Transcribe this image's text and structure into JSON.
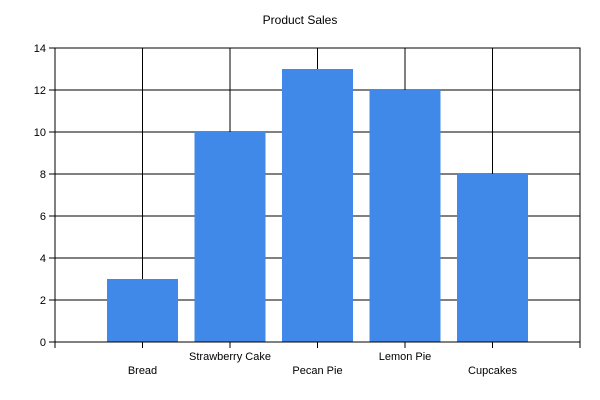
{
  "chart_data": {
    "type": "bar",
    "title": "Product Sales",
    "categories": [
      "Bread",
      "Strawberry Cake",
      "Pecan Pie",
      "Lemon Pie",
      "Cupcakes"
    ],
    "values": [
      3,
      10,
      13,
      12,
      8
    ],
    "xlabel": "",
    "ylabel": "",
    "ylim": [
      0,
      14
    ],
    "y_ticks": [
      0,
      2,
      4,
      6,
      8,
      10,
      12,
      14
    ],
    "grid": "horizontal-and-vertical-at-category-centers",
    "legend_position": "none",
    "plot_border": true,
    "x_label_rows": "staggered",
    "colors": {
      "bar": "#4189E8",
      "axis": "#000000",
      "grid": "#000000",
      "text": "#000000",
      "background": "#FFFFFF"
    }
  }
}
